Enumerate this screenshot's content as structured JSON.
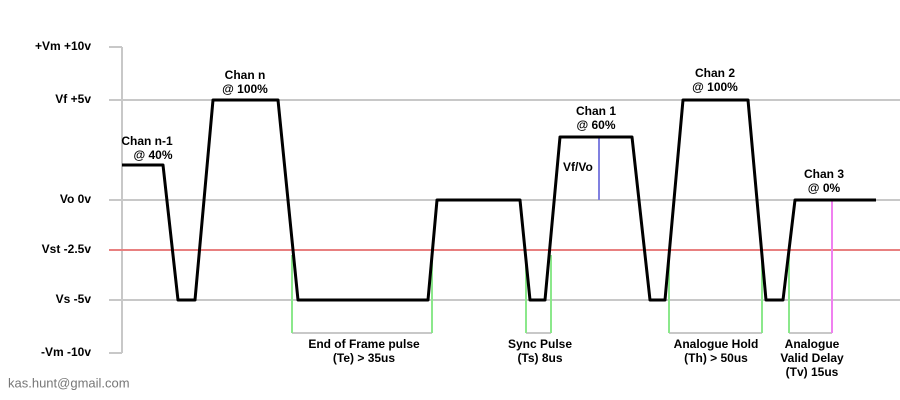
{
  "axis_labels": [
    "+Vm +10v",
    "Vf +5v",
    "Vo 0v",
    "Vst -2.5v",
    "Vs -5v",
    "-Vm -10v"
  ],
  "channels": [
    {
      "name": "Chan n-1",
      "level": "@ 40%"
    },
    {
      "name": "Chan n",
      "level": "@ 100%"
    },
    {
      "name": "Chan 1",
      "level": "@ 60%"
    },
    {
      "name": "Chan 2",
      "level": "@ 100%"
    },
    {
      "name": "Chan 3",
      "level": "@ 0%"
    }
  ],
  "ratio_label": "Vf/Vo",
  "pulses": [
    {
      "lines": [
        "End of Frame pulse",
        "(Te) > 35us"
      ]
    },
    {
      "lines": [
        "Sync Pulse",
        "(Ts) 8us"
      ]
    },
    {
      "lines": [
        "Analogue Hold",
        "(Th) > 50us"
      ]
    },
    {
      "lines": [
        "Analogue",
        "Valid Delay",
        "(Tv) 15us"
      ]
    }
  ],
  "footer": "kas.hunt@gmail.com"
}
